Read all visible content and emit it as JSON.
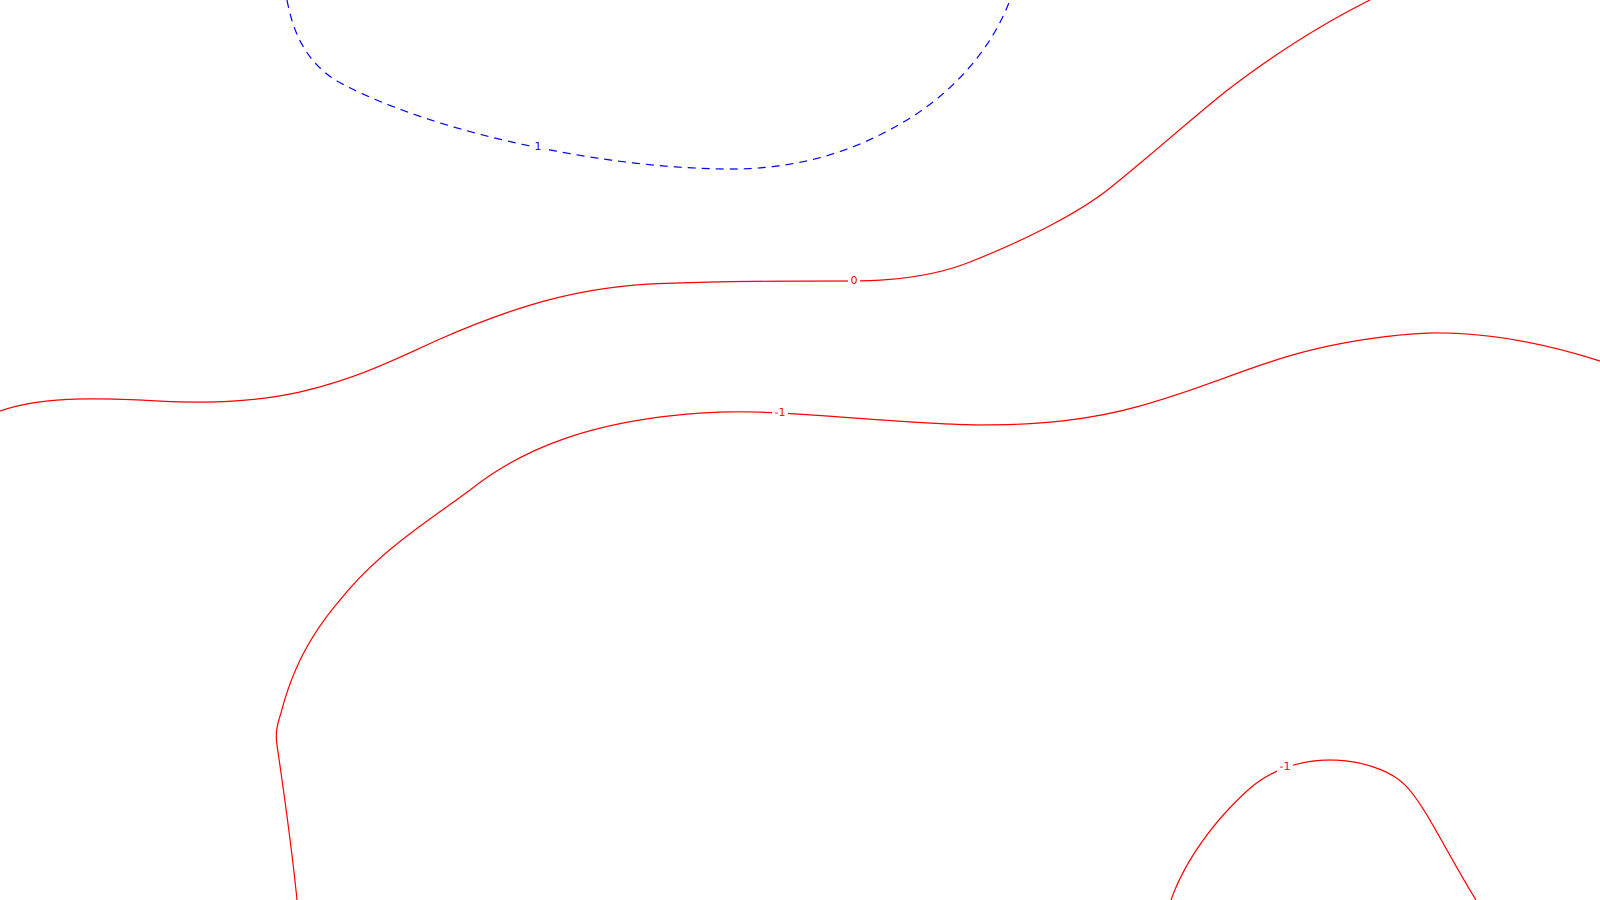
{
  "colors": {
    "background": "#ffffff",
    "positive_level": "#0000ff",
    "nonpositive_level": "#ff0000"
  },
  "contours": [
    {
      "id": "contour-plus-1-top",
      "level": 1,
      "label": "1",
      "color": "#0000ff",
      "style": "dashed"
    },
    {
      "id": "contour-zero",
      "level": 0,
      "label": "0",
      "color": "#ff0000",
      "style": "solid"
    },
    {
      "id": "contour-minus-1-middle",
      "level": -1,
      "label": "-1",
      "color": "#ff0000",
      "style": "solid"
    },
    {
      "id": "contour-minus-1-bottom-right",
      "level": -1,
      "label": "-1",
      "color": "#ff0000",
      "style": "solid"
    }
  ]
}
